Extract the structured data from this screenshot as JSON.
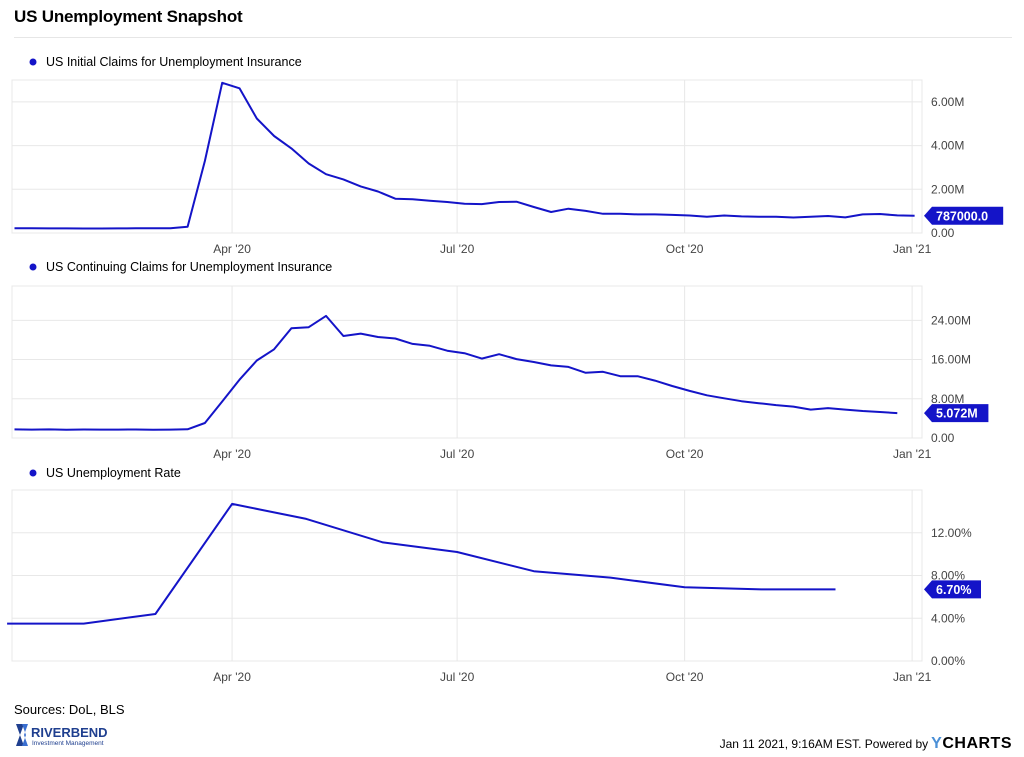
{
  "title": "US Unemployment Snapshot",
  "sources": "Sources: DoL, BLS",
  "footer": {
    "timestamp": "Jan 11 2021, 9:16AM EST.",
    "powered_by": "Powered by",
    "brand_y": "Y",
    "brand_rest": "CHARTS"
  },
  "logo": {
    "name": "RIVERBEND",
    "tagline": "Investment Management"
  },
  "colors": {
    "line": "#1414c8",
    "grid": "#e8e8e8",
    "axis_text": "#444444"
  },
  "chart_data": [
    {
      "type": "line",
      "title": "US Initial Claims for Unemployment Insurance",
      "x_ticks": [
        "Apr '20",
        "Jul '20",
        "Oct '20",
        "Jan '21"
      ],
      "x_tick_dates": [
        "2020-04-01",
        "2020-07-01",
        "2020-10-01",
        "2021-01-01"
      ],
      "xlim": [
        "2020-01-03",
        "2021-01-05"
      ],
      "ylim": [
        0,
        7000000
      ],
      "y_ticks": [
        0,
        2000000,
        4000000,
        6000000
      ],
      "y_tick_labels": [
        "0.00",
        "2.00M",
        "4.00M",
        "6.00M"
      ],
      "last_value_label": "787000.0",
      "last_value": 787000,
      "series": [
        {
          "x": [
            "2020-01-04",
            "2020-01-11",
            "2020-01-18",
            "2020-01-25",
            "2020-02-01",
            "2020-02-08",
            "2020-02-15",
            "2020-02-22",
            "2020-02-29",
            "2020-03-07",
            "2020-03-14",
            "2020-03-21",
            "2020-03-28",
            "2020-04-04",
            "2020-04-11",
            "2020-04-18",
            "2020-04-25",
            "2020-05-02",
            "2020-05-09",
            "2020-05-16",
            "2020-05-23",
            "2020-05-30",
            "2020-06-06",
            "2020-06-13",
            "2020-06-20",
            "2020-06-27",
            "2020-07-04",
            "2020-07-11",
            "2020-07-18",
            "2020-07-25",
            "2020-08-01",
            "2020-08-08",
            "2020-08-15",
            "2020-08-22",
            "2020-08-29",
            "2020-09-05",
            "2020-09-12",
            "2020-09-19",
            "2020-09-26",
            "2020-10-03",
            "2020-10-10",
            "2020-10-17",
            "2020-10-24",
            "2020-10-31",
            "2020-11-07",
            "2020-11-14",
            "2020-11-21",
            "2020-11-28",
            "2020-12-05",
            "2020-12-12",
            "2020-12-19",
            "2020-12-26",
            "2021-01-02"
          ],
          "values": [
            220000,
            217000,
            212000,
            209000,
            206000,
            208000,
            211000,
            214000,
            218000,
            217000,
            282000,
            3300000,
            6870000,
            6620000,
            5240000,
            4440000,
            3870000,
            3180000,
            2690000,
            2450000,
            2130000,
            1900000,
            1570000,
            1540000,
            1480000,
            1420000,
            1340000,
            1320000,
            1420000,
            1430000,
            1190000,
            960000,
            1110000,
            1010000,
            880000,
            880000,
            850000,
            850000,
            830000,
            800000,
            740000,
            800000,
            760000,
            740000,
            740000,
            710000,
            740000,
            780000,
            716000,
            853000,
            869000,
            803000,
            787000
          ]
        }
      ]
    },
    {
      "type": "line",
      "title": "US Continuing Claims for Unemployment Insurance",
      "x_ticks": [
        "Apr '20",
        "Jul '20",
        "Oct '20",
        "Jan '21"
      ],
      "x_tick_dates": [
        "2020-04-01",
        "2020-07-01",
        "2020-10-01",
        "2021-01-01"
      ],
      "xlim": [
        "2020-01-03",
        "2021-01-05"
      ],
      "ylim": [
        0,
        31000000
      ],
      "y_ticks": [
        0,
        8000000,
        16000000,
        24000000
      ],
      "y_tick_labels": [
        "0.00",
        "8.00M",
        "16.00M",
        "24.00M"
      ],
      "last_value_label": "5.072M",
      "last_value": 5072000,
      "series": [
        {
          "x": [
            "2020-01-04",
            "2020-01-11",
            "2020-01-18",
            "2020-01-25",
            "2020-02-01",
            "2020-02-08",
            "2020-02-15",
            "2020-02-22",
            "2020-02-29",
            "2020-03-07",
            "2020-03-14",
            "2020-03-21",
            "2020-03-28",
            "2020-04-04",
            "2020-04-11",
            "2020-04-18",
            "2020-04-25",
            "2020-05-02",
            "2020-05-09",
            "2020-05-16",
            "2020-05-23",
            "2020-05-30",
            "2020-06-06",
            "2020-06-13",
            "2020-06-20",
            "2020-06-27",
            "2020-07-04",
            "2020-07-11",
            "2020-07-18",
            "2020-07-25",
            "2020-08-01",
            "2020-08-08",
            "2020-08-15",
            "2020-08-22",
            "2020-08-29",
            "2020-09-05",
            "2020-09-12",
            "2020-09-19",
            "2020-09-26",
            "2020-10-03",
            "2020-10-10",
            "2020-10-17",
            "2020-10-24",
            "2020-10-31",
            "2020-11-07",
            "2020-11-14",
            "2020-11-21",
            "2020-11-28",
            "2020-12-05",
            "2020-12-12",
            "2020-12-19",
            "2020-12-26"
          ],
          "values": [
            1750000,
            1720000,
            1760000,
            1700000,
            1730000,
            1710000,
            1720000,
            1730000,
            1700000,
            1720000,
            1780000,
            3050000,
            7450000,
            11900000,
            15800000,
            18100000,
            22400000,
            22600000,
            24900000,
            20800000,
            21300000,
            20600000,
            20300000,
            19200000,
            18800000,
            17800000,
            17300000,
            16200000,
            17100000,
            16100000,
            15500000,
            14800000,
            14500000,
            13300000,
            13500000,
            12600000,
            12600000,
            11700000,
            10600000,
            9600000,
            8700000,
            8100000,
            7500000,
            7100000,
            6700000,
            6400000,
            5800000,
            6100000,
            5800000,
            5500000,
            5300000,
            5072000
          ]
        }
      ]
    },
    {
      "type": "line",
      "title": "US Unemployment Rate",
      "x_ticks": [
        "Apr '20",
        "Jul '20",
        "Oct '20",
        "Jan '21"
      ],
      "x_tick_dates": [
        "2020-04-01",
        "2020-07-01",
        "2020-10-01",
        "2021-01-01"
      ],
      "xlim": [
        "2020-01-03",
        "2021-01-05"
      ],
      "ylim": [
        0,
        16
      ],
      "y_ticks": [
        0,
        4,
        8,
        12
      ],
      "y_tick_labels": [
        "0.00%",
        "4.00%",
        "8.00%",
        "12.00%"
      ],
      "last_value_label": "6.70%",
      "last_value": 6.7,
      "series": [
        {
          "x": [
            "2020-01-01",
            "2020-02-01",
            "2020-03-01",
            "2020-04-01",
            "2020-05-01",
            "2020-06-01",
            "2020-07-01",
            "2020-08-01",
            "2020-09-01",
            "2020-10-01",
            "2020-11-01",
            "2020-12-01"
          ],
          "values": [
            3.5,
            3.5,
            4.4,
            14.7,
            13.3,
            11.1,
            10.2,
            8.4,
            7.8,
            6.9,
            6.7,
            6.7
          ]
        }
      ]
    }
  ]
}
